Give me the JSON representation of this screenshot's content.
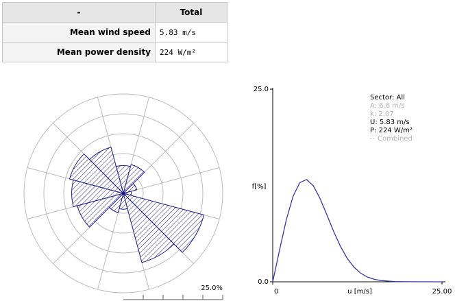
{
  "table": {
    "header": [
      "-",
      "Total"
    ],
    "rows": [
      [
        "Mean wind speed",
        "5.83 m/s"
      ],
      [
        "Mean power density",
        "224 W/m²"
      ]
    ]
  },
  "chart_data": [
    {
      "type": "rose",
      "color": "#1c1c86",
      "rlim": [
        0,
        25
      ],
      "rticks": [
        5,
        10,
        15,
        20,
        {
          "value": 25,
          "label": "25.0%"
        }
      ],
      "values": [
        7,
        7.5,
        3.5,
        2,
        21,
        18,
        4,
        5,
        12,
        13,
        14,
        12
      ]
    },
    {
      "type": "line",
      "ylabel": "f[%]",
      "xlabel": "u [m/s]",
      "xlim": [
        0,
        25
      ],
      "ylim": [
        0,
        25
      ],
      "xticks": [
        0,
        {
          "value": 25,
          "label": "25.00"
        }
      ],
      "yticks": [
        {
          "value": 0,
          "label": "0.0"
        },
        {
          "value": 25,
          "label": "25.0"
        }
      ],
      "x": [
        0,
        1,
        2,
        3,
        4,
        5,
        6,
        7,
        8,
        9,
        10,
        11,
        12,
        13,
        14,
        15,
        16,
        18,
        20,
        25
      ],
      "series": [
        {
          "name": "Combined",
          "color": "#3535a8",
          "values": [
            0,
            4.08,
            8.03,
            11.09,
            12.87,
            13.27,
            12.46,
            10.79,
            8.69,
            6.53,
            4.6,
            3.05,
            1.9,
            1.11,
            0.61,
            0.32,
            0.16,
            0.03,
            0.01,
            0
          ]
        }
      ],
      "annotations": [
        {
          "text": "Sector: All",
          "color": "#000000"
        },
        {
          "text": "A: 6.6 m/s",
          "color": "#b0b0b0"
        },
        {
          "text": "k: 2.07",
          "color": "#b0b0b0"
        },
        {
          "text": "U: 5.83 m/s",
          "color": "#000000"
        },
        {
          "text": "P: 224 W/m²",
          "color": "#000000"
        }
      ]
    }
  ]
}
